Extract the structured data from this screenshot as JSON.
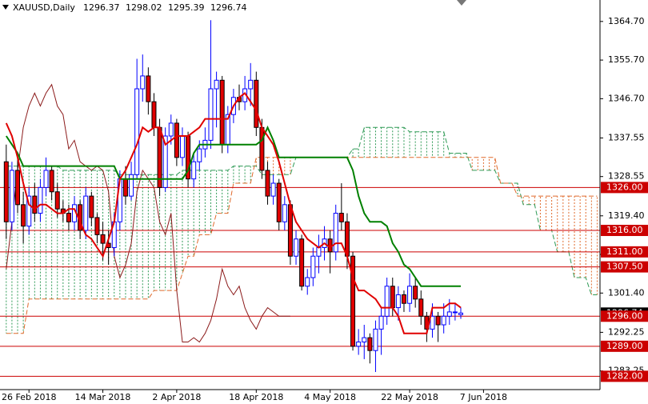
{
  "header": {
    "symbol": "XAUUSD,Daily"
  },
  "chart_data": {
    "type": "candlestick",
    "up_color": "#0000ff",
    "down_color": "#e00000",
    "ohlc": [
      [
        1332,
        1336,
        1314,
        1318
      ],
      [
        1318,
        1332,
        1316,
        1330
      ],
      [
        1330,
        1333,
        1320,
        1322
      ],
      [
        1322,
        1325,
        1313,
        1317
      ],
      [
        1317,
        1326,
        1315,
        1324
      ],
      [
        1324,
        1327,
        1318,
        1320
      ],
      [
        1320,
        1328,
        1318,
        1326
      ],
      [
        1326,
        1333,
        1324,
        1330
      ],
      [
        1330,
        1331,
        1323,
        1325
      ],
      [
        1325,
        1327,
        1319,
        1321
      ],
      [
        1321,
        1323,
        1318,
        1320
      ],
      [
        1320,
        1322,
        1316,
        1318
      ],
      [
        1318,
        1324,
        1316,
        1322
      ],
      [
        1322,
        1323,
        1314,
        1316
      ],
      [
        1316,
        1326,
        1314,
        1324
      ],
      [
        1324,
        1325,
        1317,
        1319
      ],
      [
        1319,
        1320,
        1313,
        1315
      ],
      [
        1315,
        1318,
        1309,
        1313
      ],
      [
        1313,
        1316,
        1308,
        1312
      ],
      [
        1312,
        1320,
        1310,
        1318
      ],
      [
        1318,
        1330,
        1316,
        1328
      ],
      [
        1328,
        1331,
        1322,
        1324
      ],
      [
        1324,
        1332,
        1323,
        1329
      ],
      [
        1329,
        1356,
        1328,
        1349
      ],
      [
        1349,
        1357,
        1346,
        1352
      ],
      [
        1352,
        1354,
        1343,
        1346
      ],
      [
        1346,
        1348,
        1338,
        1340
      ],
      [
        1340,
        1342,
        1324,
        1326
      ],
      [
        1326,
        1340,
        1325,
        1338
      ],
      [
        1338,
        1343,
        1336,
        1341
      ],
      [
        1341,
        1342,
        1331,
        1333
      ],
      [
        1333,
        1340,
        1331,
        1338
      ],
      [
        1338,
        1339,
        1326,
        1328
      ],
      [
        1328,
        1334,
        1326,
        1332
      ],
      [
        1332,
        1337,
        1330,
        1335
      ],
      [
        1335,
        1340,
        1333,
        1337
      ],
      [
        1337,
        1365,
        1335,
        1349
      ],
      [
        1349,
        1353,
        1340,
        1351
      ],
      [
        1351,
        1352,
        1334,
        1336
      ],
      [
        1336,
        1345,
        1334,
        1343
      ],
      [
        1343,
        1349,
        1341,
        1347
      ],
      [
        1347,
        1350,
        1344,
        1346
      ],
      [
        1346,
        1352,
        1344,
        1349
      ],
      [
        1349,
        1355,
        1345,
        1351
      ],
      [
        1351,
        1353,
        1338,
        1340
      ],
      [
        1340,
        1342,
        1328,
        1330
      ],
      [
        1330,
        1332,
        1322,
        1324
      ],
      [
        1324,
        1329,
        1322,
        1327
      ],
      [
        1327,
        1328,
        1316,
        1318
      ],
      [
        1318,
        1324,
        1316,
        1322
      ],
      [
        1322,
        1323,
        1308,
        1310
      ],
      [
        1310,
        1316,
        1308,
        1314
      ],
      [
        1314,
        1315,
        1302,
        1303
      ],
      [
        1303,
        1307,
        1301,
        1305
      ],
      [
        1305,
        1312,
        1303,
        1310
      ],
      [
        1310,
        1315,
        1306,
        1312
      ],
      [
        1312,
        1317,
        1309,
        1314
      ],
      [
        1314,
        1316,
        1306,
        1311
      ],
      [
        1311,
        1322,
        1309,
        1320
      ],
      [
        1320,
        1327,
        1316,
        1318
      ],
      [
        1318,
        1320,
        1307,
        1310
      ],
      [
        1310,
        1311,
        1288,
        1289
      ],
      [
        1289,
        1293,
        1287,
        1290
      ],
      [
        1290,
        1294,
        1286,
        1291
      ],
      [
        1291,
        1292,
        1285,
        1288
      ],
      [
        1288,
        1295,
        1283,
        1293
      ],
      [
        1293,
        1298,
        1287,
        1296
      ],
      [
        1296,
        1305,
        1294,
        1303
      ],
      [
        1303,
        1305,
        1296,
        1298
      ],
      [
        1298,
        1303,
        1295,
        1301
      ],
      [
        1301,
        1302,
        1297,
        1299
      ],
      [
        1299,
        1306,
        1297,
        1303
      ],
      [
        1303,
        1305,
        1298,
        1300
      ],
      [
        1300,
        1302,
        1294,
        1296
      ],
      [
        1296,
        1297,
        1290,
        1293
      ],
      [
        1293,
        1299,
        1291,
        1296
      ],
      [
        1296,
        1297,
        1290,
        1294
      ],
      [
        1294,
        1299,
        1292,
        1296
      ],
      [
        1296,
        1300,
        1294,
        1297
      ],
      [
        1297,
        1299,
        1295,
        1297
      ],
      [
        1296.37,
        1298.02,
        1295.39,
        1296.74
      ]
    ],
    "series": [
      {
        "color": "#008000",
        "width": 2,
        "values": [
          1338,
          1336,
          1334,
          1331,
          1331,
          1331,
          1331,
          1331,
          1331,
          1331,
          1331,
          1331,
          1331,
          1331,
          1331,
          1331,
          1331,
          1331,
          1331,
          1331,
          1328,
          1328,
          1328,
          1328,
          1328,
          1328,
          1328,
          1328,
          1328,
          1328,
          1328,
          1328,
          1330,
          1334,
          1336,
          1336,
          1336,
          1336,
          1336,
          1336,
          1336,
          1336,
          1336,
          1336,
          1336,
          1337,
          1340,
          1337,
          1333,
          1333,
          1333,
          1333,
          1333,
          1333,
          1333,
          1333,
          1333,
          1333,
          1333,
          1333,
          1333,
          1330,
          1324,
          1320,
          1318,
          1318,
          1318,
          1317,
          1313,
          1311,
          1308,
          1307,
          1305,
          1303,
          1303,
          1303,
          1303,
          1303,
          1303,
          1303,
          1303
        ]
      },
      {
        "color": "#e00000",
        "width": 2,
        "values": [
          1341,
          1338,
          1333,
          1327,
          1322,
          1321,
          1322,
          1322,
          1321,
          1320,
          1320,
          1321,
          1321,
          1318,
          1315,
          1314,
          1312,
          1310,
          1314,
          1318,
          1328,
          1330,
          1333,
          1336,
          1340,
          1339,
          1340,
          1340,
          1336,
          1337,
          1338,
          1338,
          1338,
          1339,
          1340,
          1342,
          1342,
          1342,
          1342,
          1342,
          1345,
          1347,
          1348,
          1346,
          1344,
          1340,
          1338,
          1336,
          1332,
          1327,
          1322,
          1318,
          1316,
          1314,
          1313,
          1312,
          1313,
          1312,
          1313,
          1313,
          1310,
          1305,
          1302,
          1302,
          1301,
          1300,
          1298,
          1298,
          1298,
          1296,
          1292,
          1292,
          1292,
          1292,
          1292,
          1298,
          1298,
          1298,
          1299,
          1299,
          1298
        ]
      },
      {
        "color": "#8b1a1a",
        "width": 1,
        "values": [
          1307,
          1318,
          1330,
          1340,
          1345,
          1348,
          1345,
          1348,
          1350,
          1345,
          1343,
          1335,
          1337,
          1332,
          1331,
          1330,
          1331,
          1330,
          1325,
          1310,
          1305,
          1308,
          1313,
          1325,
          1330,
          1328,
          1326,
          1318,
          1315,
          1320,
          1302,
          1290,
          1290,
          1291,
          1290,
          1292,
          1295,
          1300,
          1307,
          1303,
          1301,
          1303,
          1298,
          1295,
          1293,
          1296,
          1298,
          1297,
          1296,
          1296,
          1296
        ]
      }
    ],
    "cloud": {
      "up_color": "#2e9a55",
      "down_color": "#e06a2c",
      "span_a": [
        1331,
        1331,
        1331,
        1331,
        1331,
        1331,
        1331,
        1331,
        1331,
        1331,
        1330,
        1330,
        1330,
        1330,
        1330,
        1330,
        1330,
        1330,
        1330,
        1330,
        1329,
        1329,
        1329,
        1329,
        1329,
        1329,
        1329,
        1329,
        1329,
        1329,
        1329,
        1330,
        1330,
        1330,
        1330,
        1330,
        1330,
        1330,
        1330,
        1330,
        1331,
        1331,
        1331,
        1331,
        1331,
        1329,
        1329,
        1329,
        1329,
        1329,
        1329,
        1333,
        1333,
        1333,
        1333,
        1333,
        1333,
        1333,
        1333,
        1333,
        1333,
        1335,
        1335,
        1340,
        1340,
        1340,
        1340,
        1340,
        1340,
        1340,
        1340,
        1339,
        1339,
        1339,
        1339,
        1339,
        1339,
        1339,
        1334,
        1334,
        1334,
        1334,
        1330,
        1330,
        1330,
        1330,
        1330,
        1327,
        1327,
        1327,
        1327,
        1322,
        1322,
        1322,
        1316,
        1316,
        1316,
        1311,
        1311,
        1311,
        1305,
        1305,
        1305,
        1301,
        1301
      ],
      "span_b": [
        1292,
        1292,
        1292,
        1292,
        1300,
        1300,
        1300,
        1300,
        1300,
        1300,
        1300,
        1300,
        1300,
        1300,
        1300,
        1300,
        1300,
        1300,
        1300,
        1300,
        1300,
        1300,
        1300,
        1300,
        1300,
        1300,
        1302,
        1302,
        1302,
        1302,
        1302,
        1306,
        1310,
        1310,
        1315,
        1315,
        1315,
        1320,
        1320,
        1320,
        1327,
        1327,
        1327,
        1327,
        1333,
        1333,
        1333,
        1333,
        1333,
        1333,
        1333,
        1333,
        1333,
        1333,
        1333,
        1333,
        1333,
        1333,
        1333,
        1333,
        1333,
        1333,
        1333,
        1333,
        1333,
        1333,
        1333,
        1333,
        1333,
        1333,
        1333,
        1333,
        1333,
        1333,
        1333,
        1333,
        1333,
        1333,
        1333,
        1333,
        1333,
        1333,
        1333,
        1333,
        1333,
        1333,
        1333,
        1327,
        1327,
        1327,
        1324,
        1324,
        1324,
        1324,
        1324,
        1324,
        1324,
        1324,
        1324,
        1324,
        1324,
        1324,
        1324,
        1324,
        1324
      ]
    },
    "level_color": "#cc0000",
    "levels": [
      {
        "value": 1326,
        "label": "1326.00"
      },
      {
        "value": 1316,
        "label": "1316.00"
      },
      {
        "value": 1311,
        "label": "1311.00"
      },
      {
        "value": 1307.5,
        "label": "1307.50"
      },
      {
        "value": 1296,
        "label": "1296.00"
      },
      {
        "value": 1289,
        "label": "1289.00"
      },
      {
        "value": 1282,
        "label": "1282.00"
      }
    ],
    "ylim": [
      1278.9,
      1369.7
    ],
    "yticks": [
      {
        "value": 1364.7,
        "label": "1364.70"
      },
      {
        "value": 1355.7,
        "label": "1355.70"
      },
      {
        "value": 1346.7,
        "label": "1346.70"
      },
      1337.55,
      1328.55,
      {
        "value": 1319.4,
        "label": "1319.40"
      },
      {
        "value": 1310.4,
        "label": "1310.40"
      },
      {
        "value": 1301.4,
        "label": "1301.40"
      },
      1292.25,
      1283.25
    ],
    "xlim": [
      -1.1,
      104.5
    ],
    "xticks": [
      {
        "value": 4,
        "label": "26 Feb 2018"
      },
      {
        "value": 17,
        "label": "14 Mar 2018"
      },
      {
        "value": 30,
        "label": "2 Apr 2018"
      },
      {
        "value": 44,
        "label": "18 Apr 2018"
      },
      {
        "value": 57,
        "label": "4 May 2018"
      },
      {
        "value": 71,
        "label": "22 May 2018"
      },
      {
        "value": 84,
        "label": "7 Jun 2018"
      }
    ]
  }
}
